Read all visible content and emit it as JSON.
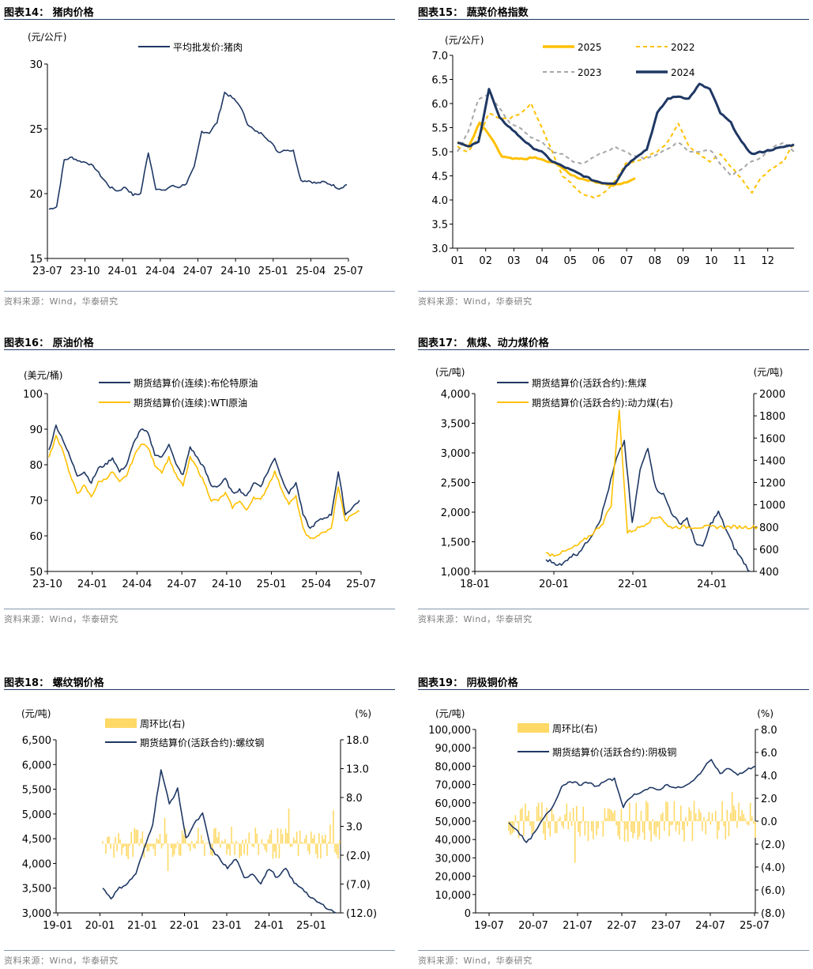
{
  "colors": {
    "navy": "#1f3864",
    "gold": "#ffc000",
    "gray": "#a6a6a6",
    "lightgold": "#ffd966"
  },
  "source_text": "资料来源：Wind，华泰研究",
  "panels": [
    {
      "title": "图表14：  猪肉价格"
    },
    {
      "title": "图表15：  蔬菜价格指数"
    },
    {
      "title": "图表16：  原油价格"
    },
    {
      "title": "图表17：  焦煤、动力煤价格"
    },
    {
      "title": "图表18：  螺纹钢价格"
    },
    {
      "title": "图表19：  阴极铜价格"
    }
  ],
  "chart_data": [
    {
      "type": "line",
      "title": "图表14：  猪肉价格",
      "unit_left": "(元/公斤)",
      "ylim": [
        15,
        30
      ],
      "yticks": [
        "15",
        "20",
        "25",
        "30"
      ],
      "xticks": [
        "23-07",
        "23-10",
        "24-01",
        "24-04",
        "24-07",
        "24-10",
        "25-01",
        "25-04",
        "25-07"
      ],
      "series": [
        {
          "name": "平均批发价:猪肉",
          "color": "#1f3864",
          "values": [
            18.8,
            19.0,
            22.6,
            22.8,
            22.5,
            22.4,
            22.0,
            21.2,
            20.5,
            20.2,
            20.5,
            19.9,
            20.0,
            23.2,
            20.4,
            20.2,
            20.6,
            20.5,
            20.8,
            22.0,
            24.8,
            24.7,
            25.5,
            27.8,
            27.4,
            26.8,
            25.4,
            24.8,
            24.6,
            24.0,
            23.2,
            23.4,
            23.3,
            21.0,
            21.0,
            20.8,
            20.9,
            20.7,
            20.4,
            20.7
          ]
        }
      ]
    },
    {
      "type": "line",
      "title": "图表15：  蔬菜价格指数",
      "unit_left": "(元/公斤)",
      "ylim": [
        3.0,
        7.0
      ],
      "yticks": [
        "3.0",
        "3.5",
        "4.0",
        "4.5",
        "5.0",
        "5.5",
        "6.0",
        "6.5",
        "7.0"
      ],
      "xticks": [
        "01",
        "02",
        "03",
        "04",
        "05",
        "06",
        "07",
        "08",
        "09",
        "10",
        "11",
        "12"
      ],
      "series": [
        {
          "name": "2025",
          "color": "#ffc000",
          "style": "thick",
          "values": [
            5.2,
            5.1,
            5.6,
            5.3,
            4.9,
            4.85,
            4.85,
            4.88,
            4.8,
            4.75,
            4.55,
            4.45,
            4.4,
            4.35,
            4.3,
            4.35,
            4.45
          ]
        },
        {
          "name": "2022",
          "color": "#ffc000",
          "style": "dashed",
          "values": [
            5.1,
            5.0,
            5.3,
            5.8,
            5.7,
            5.7,
            5.8,
            6.0,
            5.5,
            5.0,
            4.5,
            4.3,
            4.1,
            4.05,
            4.15,
            4.4,
            4.75,
            4.8,
            4.9,
            5.0,
            5.2,
            5.6,
            5.1,
            4.95,
            4.8,
            4.95,
            4.7,
            4.45,
            4.15,
            4.5,
            4.65,
            4.8,
            5.2
          ]
        },
        {
          "name": "2023",
          "color": "#a6a6a6",
          "style": "dashed",
          "values": [
            5.0,
            5.4,
            6.1,
            6.2,
            5.9,
            5.6,
            5.5,
            5.3,
            5.2,
            5.0,
            4.95,
            4.8,
            4.75,
            4.9,
            5.0,
            5.1,
            5.0,
            4.9,
            4.85,
            4.95,
            5.05,
            5.2,
            5.0,
            5.0,
            5.05,
            4.75,
            4.5,
            4.65,
            4.8,
            4.9,
            5.1,
            5.2,
            5.0
          ]
        },
        {
          "name": "2024",
          "color": "#1f3864",
          "style": "thick",
          "values": [
            5.2,
            5.1,
            5.2,
            6.3,
            5.7,
            5.5,
            5.3,
            5.1,
            5.0,
            4.8,
            4.7,
            4.6,
            4.5,
            4.4,
            4.35,
            4.35,
            4.7,
            4.9,
            5.05,
            5.8,
            6.1,
            6.15,
            6.1,
            6.4,
            6.3,
            5.8,
            5.6,
            5.2,
            4.95,
            5.0,
            5.05,
            5.1,
            5.15
          ]
        }
      ]
    },
    {
      "type": "line",
      "title": "图表16：  原油价格",
      "unit_left": "(美元/桶)",
      "ylim": [
        50,
        100
      ],
      "yticks": [
        "50",
        "60",
        "70",
        "80",
        "90",
        "100"
      ],
      "xticks": [
        "23-10",
        "24-01",
        "24-04",
        "24-07",
        "24-10",
        "25-01",
        "25-04",
        "25-07"
      ],
      "series": [
        {
          "name": "期货结算价(连续):布伦特原油",
          "color": "#1f3864",
          "values": [
            84,
            91,
            87,
            82,
            77,
            78,
            75,
            79,
            80,
            82,
            78,
            80,
            86,
            90,
            89,
            83,
            82,
            86,
            80,
            77,
            85,
            82,
            79,
            74,
            74,
            76,
            72,
            73,
            71,
            75,
            74,
            78,
            82,
            76,
            72,
            75,
            66,
            62,
            64,
            65,
            66,
            78,
            66,
            68,
            70
          ]
        },
        {
          "name": "期货结算价(连续):WTI原油",
          "color": "#ffc000",
          "values": [
            82,
            88,
            84,
            77,
            72,
            74,
            71,
            75,
            76,
            78,
            75,
            77,
            82,
            86,
            85,
            80,
            78,
            82,
            77,
            74,
            82,
            79,
            75,
            70,
            70,
            72,
            68,
            70,
            67,
            71,
            70,
            74,
            78,
            73,
            69,
            71,
            62,
            59,
            60,
            61,
            62,
            74,
            64,
            66,
            67
          ]
        }
      ]
    },
    {
      "type": "line",
      "title": "图表17：  焦煤、动力煤价格",
      "unit_left": "(元/吨)",
      "unit_right": "(元/吨)",
      "ylim": [
        1000,
        4000
      ],
      "ylim_right": [
        400,
        2000
      ],
      "yticks": [
        "1,000",
        "1,500",
        "2,000",
        "2,500",
        "3,000",
        "3,500",
        "4,000"
      ],
      "yticks_right": [
        "400",
        "600",
        "800",
        "1000",
        "1200",
        "1400",
        "1600",
        "1800",
        "2000"
      ],
      "xticks": [
        "18-01",
        "20-01",
        "22-01",
        "24-01"
      ],
      "series": [
        {
          "name": "期货结算价(活跃合约):焦煤",
          "color": "#1f3864",
          "axis": "left",
          "values": [
            1200,
            1150,
            1100,
            1250,
            1300,
            1450,
            1650,
            1900,
            2400,
            2900,
            3200,
            1800,
            2700,
            3100,
            2400,
            2300,
            2000,
            1800,
            1900,
            1500,
            1400,
            1800,
            2000,
            1700,
            1400,
            1200,
            1000
          ]
        },
        {
          "name": "期货结算价(活跃合约):动力煤(右)",
          "color": "#ffc000",
          "axis": "right",
          "values": [
            560,
            550,
            570,
            600,
            640,
            700,
            760,
            840,
            1000,
            1850,
            750,
            780,
            820,
            870,
            900,
            800,
            800,
            800,
            800,
            800,
            800,
            800,
            800,
            800,
            800,
            800,
            800
          ]
        }
      ]
    },
    {
      "type": "line",
      "title": "图表18：  螺纹钢价格",
      "unit_left": "(元/吨)",
      "unit_right": "(%)",
      "ylim": [
        3000,
        6500
      ],
      "ylim_right": [
        -12,
        18
      ],
      "yticks": [
        "3,000",
        "3,500",
        "4,000",
        "4,500",
        "5,000",
        "5,500",
        "6,000",
        "6,500"
      ],
      "yticks_right": [
        "(12.0)",
        "(7.0)",
        "(2.0)",
        "3.0",
        "8.0",
        "13.0",
        "18.0"
      ],
      "xticks": [
        "19-01",
        "20-01",
        "21-01",
        "22-01",
        "23-01",
        "24-01",
        "25-01"
      ],
      "series": [
        {
          "name": "周环比(右)",
          "color": "#ffd966",
          "kind": "bar"
        },
        {
          "name": "期货结算价(活跃合约):螺纹钢",
          "color": "#1f3864",
          "values": [
            3500,
            3300,
            3500,
            3600,
            3800,
            4300,
            4800,
            5900,
            5200,
            5500,
            4500,
            4800,
            5000,
            4300,
            4100,
            3900,
            4100,
            3700,
            3800,
            3600,
            3900,
            3700,
            3900,
            3600,
            3500,
            3300,
            3200,
            3100,
            3000
          ]
        }
      ]
    },
    {
      "type": "line",
      "title": "图表19：  阴极铜价格",
      "unit_left": "(元/吨)",
      "unit_right": "(%)",
      "ylim": [
        0,
        100000
      ],
      "ylim_right": [
        -8,
        8
      ],
      "yticks": [
        "0",
        "10,000",
        "20,000",
        "30,000",
        "40,000",
        "50,000",
        "60,000",
        "70,000",
        "80,000",
        "90,000",
        "100,000"
      ],
      "yticks_right": [
        "(8.0)",
        "(6.0)",
        "(4.0)",
        "(2.0)",
        "0.0",
        "2.0",
        "4.0",
        "6.0",
        "8.0"
      ],
      "xticks": [
        "19-07",
        "20-07",
        "21-07",
        "22-07",
        "23-07",
        "24-07",
        "25-07"
      ],
      "series": [
        {
          "name": "周环比(右)",
          "color": "#ffd966",
          "kind": "bar"
        },
        {
          "name": "期货结算价(活跃合约):阴极铜",
          "color": "#1f3864",
          "values": [
            49000,
            45000,
            38000,
            44000,
            52000,
            58000,
            69000,
            72000,
            70000,
            71000,
            69000,
            72000,
            73000,
            58000,
            64000,
            66000,
            68000,
            67000,
            70000,
            68000,
            69000,
            72000,
            78000,
            84000,
            76000,
            79000,
            75000,
            78000,
            80000
          ]
        }
      ]
    }
  ]
}
